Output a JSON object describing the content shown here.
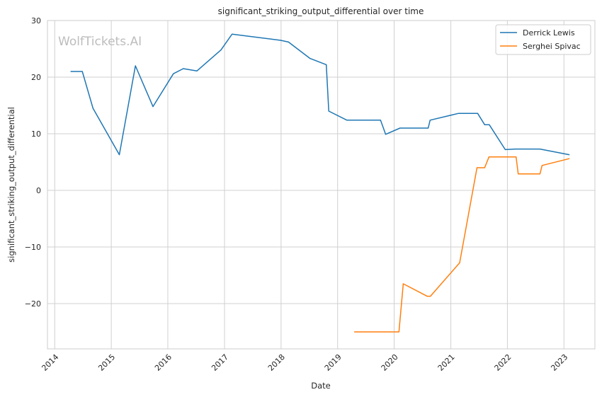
{
  "chart_data": {
    "type": "line",
    "title": "significant_striking_output_differential over time",
    "xlabel": "Date",
    "ylabel": "significant_striking_output_differential",
    "watermark": "WolfTickets.AI",
    "xlim": [
      "2013-11-15",
      "2023-07-20"
    ],
    "ylim": [
      -28,
      30
    ],
    "x_ticks": [
      "2014-01-01",
      "2015-01-01",
      "2016-01-01",
      "2017-01-01",
      "2018-01-01",
      "2019-01-01",
      "2020-01-01",
      "2021-01-01",
      "2022-01-01",
      "2023-01-01"
    ],
    "x_tick_labels": [
      "2014",
      "2015",
      "2016",
      "2017",
      "2018",
      "2019",
      "2020",
      "2021",
      "2022",
      "2023"
    ],
    "y_ticks": [
      -20,
      -10,
      0,
      10,
      20,
      30
    ],
    "y_tick_labels": [
      "−20",
      "−10",
      "0",
      "10",
      "20",
      "30"
    ],
    "grid": true,
    "legend_position": "top-right",
    "series": [
      {
        "name": "Derrick Lewis",
        "color": "#1f77b4",
        "points": [
          [
            "2014-04-15",
            21.0
          ],
          [
            "2014-06-28",
            21.0
          ],
          [
            "2014-09-05",
            14.5
          ],
          [
            "2015-02-22",
            6.3
          ],
          [
            "2015-06-06",
            22.0
          ],
          [
            "2015-09-27",
            14.8
          ],
          [
            "2016-02-06",
            20.6
          ],
          [
            "2016-04-10",
            21.5
          ],
          [
            "2016-07-07",
            21.1
          ],
          [
            "2016-12-09",
            24.8
          ],
          [
            "2017-02-19",
            27.6
          ],
          [
            "2017-06-11",
            27.2
          ],
          [
            "2017-12-30",
            26.5
          ],
          [
            "2018-02-18",
            26.2
          ],
          [
            "2018-07-07",
            23.3
          ],
          [
            "2018-10-20",
            22.2
          ],
          [
            "2018-11-05",
            14.0
          ],
          [
            "2019-03-02",
            12.4
          ],
          [
            "2019-10-05",
            12.4
          ],
          [
            "2019-11-07",
            9.9
          ],
          [
            "2020-02-08",
            11.0
          ],
          [
            "2020-08-08",
            11.0
          ],
          [
            "2020-08-20",
            12.4
          ],
          [
            "2021-02-20",
            13.6
          ],
          [
            "2021-06-23",
            13.6
          ],
          [
            "2021-08-07",
            11.6
          ],
          [
            "2021-09-06",
            11.6
          ],
          [
            "2021-12-18",
            7.2
          ],
          [
            "2022-02-20",
            7.3
          ],
          [
            "2022-07-30",
            7.3
          ],
          [
            "2023-02-04",
            6.3
          ]
        ]
      },
      {
        "name": "Serghei Spivac",
        "color": "#ff7f0e",
        "points": [
          [
            "2019-04-20",
            -25.0
          ],
          [
            "2020-02-01",
            -25.0
          ],
          [
            "2020-02-29",
            -16.5
          ],
          [
            "2020-08-01",
            -18.7
          ],
          [
            "2020-08-22",
            -18.7
          ],
          [
            "2021-02-27",
            -12.8
          ],
          [
            "2021-06-19",
            4.0
          ],
          [
            "2021-08-07",
            4.0
          ],
          [
            "2021-09-04",
            5.9
          ],
          [
            "2022-02-26",
            5.9
          ],
          [
            "2022-03-12",
            2.9
          ],
          [
            "2022-07-30",
            2.9
          ],
          [
            "2022-08-13",
            4.4
          ],
          [
            "2023-02-04",
            5.6
          ]
        ]
      }
    ]
  }
}
